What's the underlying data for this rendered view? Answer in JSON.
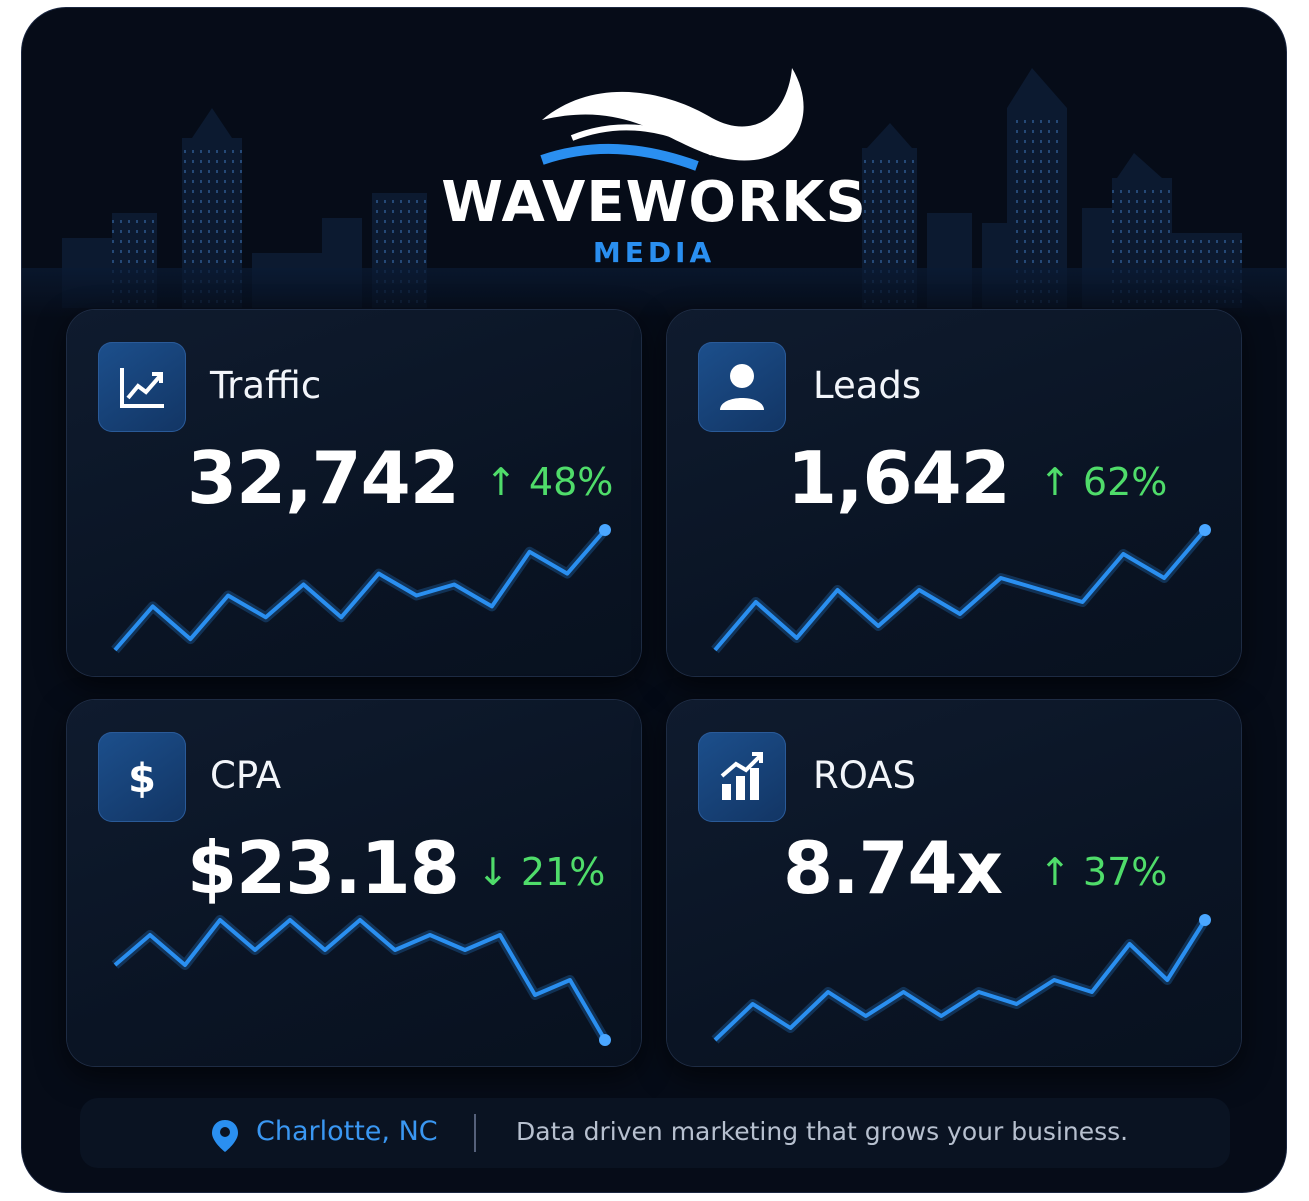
{
  "brand": {
    "title": "WAVEWORKS",
    "subtitle": "MEDIA"
  },
  "colors": {
    "accent": "#2a8ff0",
    "positive": "#4fdc6a",
    "background": "#060c18",
    "text": "#ffffff"
  },
  "metrics": [
    {
      "label": "Traffic",
      "value": "32,742",
      "delta": "↑ 48%",
      "icon": "trend-chart-icon",
      "trend": [
        2,
        6,
        3,
        7,
        5,
        8,
        5,
        9,
        7,
        8,
        6,
        11,
        9,
        13
      ]
    },
    {
      "label": "Leads",
      "value": "1,642",
      "delta": "↑ 62%",
      "icon": "user-icon",
      "trend": [
        2,
        6,
        3,
        7,
        4,
        7,
        5,
        8,
        7,
        6,
        10,
        8,
        12
      ]
    },
    {
      "label": "CPA",
      "value": "$23.18",
      "delta": "↓ 21%",
      "icon": "dollar-icon",
      "trend": [
        7,
        9,
        7,
        10,
        8,
        10,
        8,
        10,
        8,
        9,
        8,
        9,
        5,
        6,
        2
      ]
    },
    {
      "label": "ROAS",
      "value": "8.74x",
      "delta": "↑ 37%",
      "icon": "bar-growth-icon",
      "trend": [
        2,
        5,
        3,
        6,
        4,
        6,
        4,
        6,
        5,
        7,
        6,
        10,
        7,
        12
      ]
    }
  ],
  "footer": {
    "location": "Charlotte, NC",
    "tagline": "Data driven marketing that grows your business."
  }
}
